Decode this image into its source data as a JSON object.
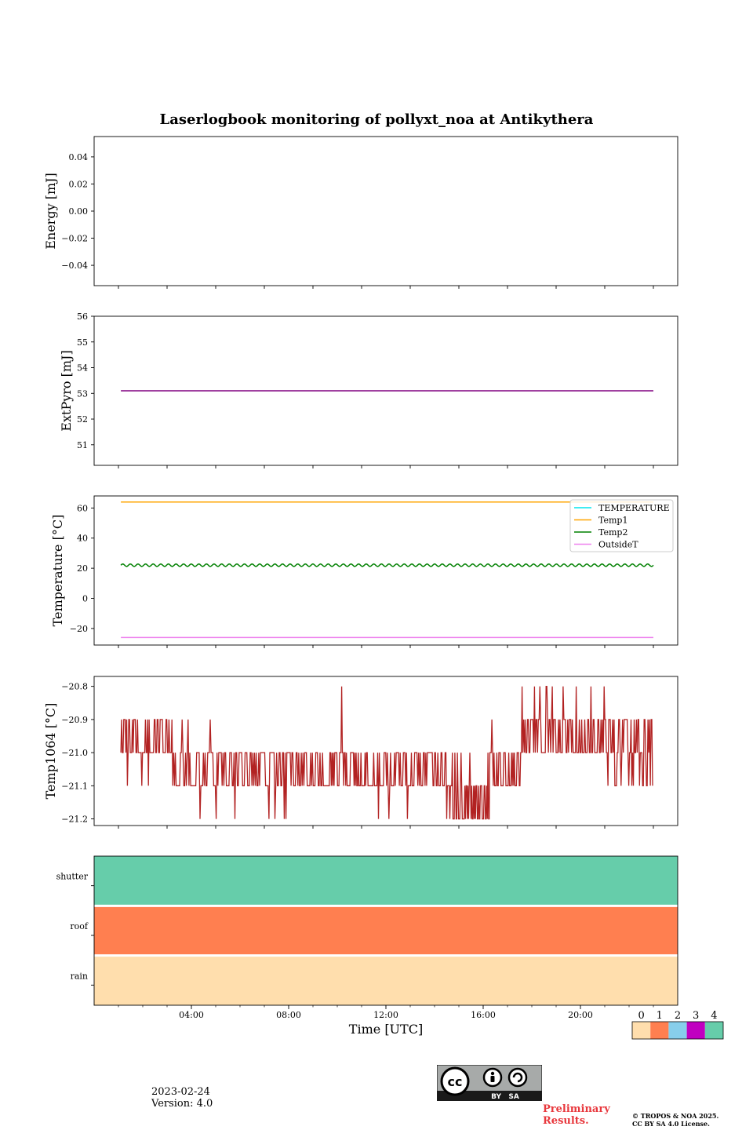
{
  "title": "Laserlogbook monitoring of pollyxt_noa at Antikythera",
  "footer": {
    "date": "2023-02-24",
    "version": "Version: 4.0",
    "preliminary_line1": "Preliminary",
    "preliminary_line2": "Results.",
    "copyright_line1": "© TROPOS & NOA 2025.",
    "copyright_line2": "CC BY SA 4.0 License.",
    "cc_badge_text": "BY   SA"
  },
  "chart_data": [
    {
      "id": "energy",
      "type": "line",
      "ylabel": "Energy [mJ]",
      "ylim": [
        -0.055,
        0.055
      ],
      "yticks": [
        0.04,
        0.02,
        0.0,
        -0.02,
        -0.04
      ],
      "ytick_labels": [
        "0.04",
        "0.02",
        "0.00",
        "−0.02",
        "−0.04"
      ],
      "series": []
    },
    {
      "id": "extpyro",
      "type": "line",
      "ylabel": "ExtPyro [mJ]",
      "ylim": [
        50.2,
        56.0
      ],
      "yticks": [
        56,
        55,
        54,
        53,
        52,
        51
      ],
      "ytick_labels": [
        "56",
        "55",
        "54",
        "53",
        "52",
        "51"
      ],
      "series": [
        {
          "color": "#800080",
          "x_hours": [
            1.1,
            23.0
          ],
          "values": [
            53.1,
            53.1
          ]
        }
      ]
    },
    {
      "id": "temperature",
      "type": "line",
      "ylabel": "Temperature [°C]",
      "ylim": [
        -31,
        68
      ],
      "yticks": [
        60,
        40,
        20,
        0,
        -20
      ],
      "ytick_labels": [
        "60",
        "40",
        "20",
        "0",
        "−20"
      ],
      "legend_position": "upper-right",
      "series": [
        {
          "name": "TEMPERATURE",
          "color": "#00e5ee",
          "x_hours": [],
          "values": []
        },
        {
          "name": "Temp1",
          "color": "#ffa500",
          "x_hours": [
            1.1,
            23.0
          ],
          "values": [
            64,
            64
          ]
        },
        {
          "name": "Temp2",
          "color": "#008000",
          "x_hours": [
            1.1,
            23.0
          ],
          "mean": 22,
          "amplitude": 0.8,
          "cycles": 70
        },
        {
          "name": "OutsideT",
          "color": "#ee82ee",
          "x_hours": [
            1.1,
            23.0
          ],
          "values": [
            -26,
            -26
          ]
        }
      ]
    },
    {
      "id": "temp1064",
      "type": "line",
      "ylabel": "Temp1064 [°C]",
      "ylim": [
        -21.22,
        -20.77
      ],
      "yticks": [
        -20.8,
        -20.9,
        -21.0,
        -21.1,
        -21.2
      ],
      "ytick_labels": [
        "−20.8",
        "−20.9",
        "−21.0",
        "−21.1",
        "−21.2"
      ],
      "series": [
        {
          "color": "#b22222",
          "x_hours": [
            1.1,
            23.0
          ],
          "segments": [
            {
              "from": 1.1,
              "to": 2.05,
              "levels": [
                -20.9,
                -21.0
              ],
              "count": 32,
              "rare": [
                -21.1
              ]
            },
            {
              "from": 2.05,
              "to": 3.2,
              "levels": [
                -20.9,
                -21.0
              ],
              "count": 38,
              "rare": [
                -21.1
              ]
            },
            {
              "from": 3.2,
              "to": 5.3,
              "levels": [
                -21.0,
                -21.1
              ],
              "count": 60,
              "rare": [
                -21.2,
                -20.9
              ]
            },
            {
              "from": 5.3,
              "to": 9.5,
              "levels": [
                -21.0,
                -21.1
              ],
              "count": 120,
              "rare": [
                -21.2
              ]
            },
            {
              "from": 9.5,
              "to": 11.2,
              "levels": [
                -21.0,
                -21.1
              ],
              "count": 60,
              "rare": [
                -20.9,
                -20.8
              ]
            },
            {
              "from": 11.2,
              "to": 14.5,
              "levels": [
                -21.0,
                -21.1
              ],
              "count": 100,
              "rare": [
                -21.2
              ]
            },
            {
              "from": 14.5,
              "to": 16.3,
              "levels": [
                -21.1,
                -21.2
              ],
              "count": 70,
              "rare": [
                -21.0
              ]
            },
            {
              "from": 16.3,
              "to": 17.6,
              "levels": [
                -21.0,
                -21.1
              ],
              "count": 45,
              "rare": [
                -20.9
              ]
            },
            {
              "from": 17.6,
              "to": 21.1,
              "levels": [
                -20.9,
                -21.0
              ],
              "count": 110,
              "rare": [
                -20.8
              ]
            },
            {
              "from": 21.1,
              "to": 23.0,
              "levels": [
                -20.9,
                -21.0,
                -21.1
              ],
              "count": 60,
              "rare": []
            }
          ]
        }
      ]
    },
    {
      "id": "status",
      "type": "heatmap",
      "xlabel": "Time [UTC]",
      "rows": [
        "shutter",
        "roof",
        "rain"
      ],
      "row_values": [
        4,
        1,
        0
      ],
      "xlim_hours": [
        0,
        24
      ],
      "xticks_hours": [
        4,
        8,
        12,
        16,
        20
      ],
      "xtick_labels": [
        "04:00",
        "08:00",
        "12:00",
        "16:00",
        "20:00"
      ],
      "colorbar": {
        "labels": [
          "0",
          "1",
          "2",
          "3",
          "4"
        ],
        "colors": [
          "#ffdead",
          "#ff7f50",
          "#87ceeb",
          "#c000c0",
          "#66cdaa"
        ]
      }
    }
  ]
}
